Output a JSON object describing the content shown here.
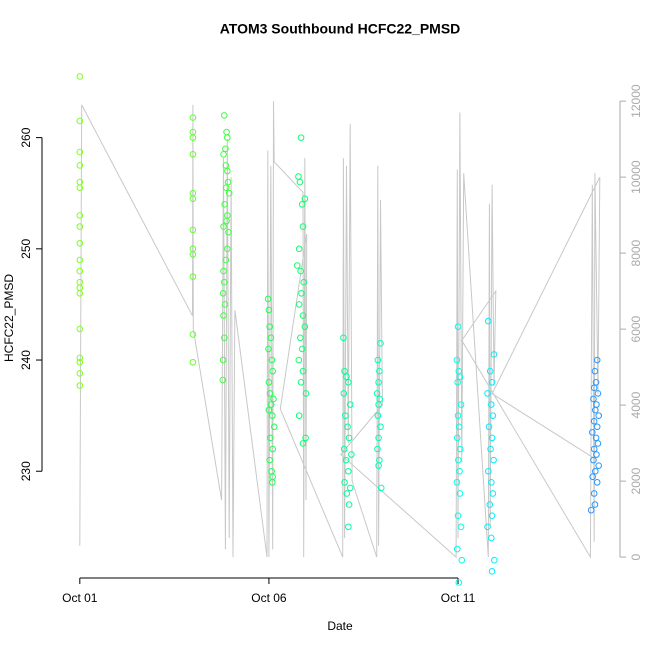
{
  "chart_data": {
    "type": "scatter",
    "title": "ATOM3 Southbound HCFC22_PMSD",
    "x_label": "Date",
    "y_label": "HCFC22_PMSD",
    "xlim": [
      0.0,
      15.23
    ],
    "xticks": [
      {
        "value": 1,
        "label": "Oct 01"
      },
      {
        "value": 6,
        "label": "Oct 06"
      },
      {
        "value": 11,
        "label": "Oct 11"
      }
    ],
    "ylim": [
      220.4,
      266.8
    ],
    "yticks": [
      230,
      240,
      250,
      260
    ],
    "y2lim": [
      -550,
      13030
    ],
    "y2ticks": [
      0,
      2000,
      4000,
      6000,
      8000,
      10000,
      12000
    ],
    "series": [
      {
        "color": "#80ff20",
        "x": [
          1,
          1,
          1,
          1,
          1,
          1,
          1,
          1,
          1,
          1,
          1,
          1,
          1,
          1,
          1,
          1,
          1,
          1,
          1
        ],
        "values": [
          265.5,
          261.5,
          258.7,
          257.5,
          256,
          255.5,
          253,
          252,
          250.5,
          249,
          248,
          247,
          246.5,
          246,
          242.8,
          240.2,
          239.8,
          238.8,
          237.7
        ]
      },
      {
        "color": "#60ff30",
        "x": [
          3.99,
          3.99,
          3.99,
          3.99,
          3.99,
          3.99,
          3.99,
          3.99,
          3.99,
          3.99,
          3.99,
          3.99
        ],
        "values": [
          261.8,
          260.5,
          260,
          258.5,
          255,
          254.5,
          251.7,
          250,
          249.5,
          247.5,
          242.3,
          239.8
        ]
      },
      {
        "color": "#40ff40",
        "x": [
          4.82,
          4.88,
          4.9,
          4.85,
          4.8,
          4.86,
          4.9,
          4.92,
          4.87,
          4.95,
          4.83,
          4.9,
          4.88,
          4.8,
          4.93,
          4.9,
          4.86,
          4.8,
          4.82,
          4.79,
          4.84,
          4.8,
          4.82,
          4.79,
          4.78
        ],
        "values": [
          262,
          260.5,
          260,
          259,
          258.5,
          257.5,
          257,
          256,
          255.5,
          255,
          254,
          253,
          252.5,
          252,
          251.5,
          250,
          249,
          248,
          247,
          246,
          245,
          244,
          242,
          240,
          238.2
        ]
      },
      {
        "color": "#20ff50",
        "x": [
          5.98,
          6.0,
          6.02,
          6.05,
          5.99,
          6.08,
          6.1,
          6.0,
          6.03,
          6.12,
          6.06,
          6.0,
          6.09,
          6.14,
          6.04,
          6.1,
          6.02,
          6.07,
          6.1,
          6.09
        ],
        "values": [
          245.5,
          244.5,
          243,
          242,
          241,
          240,
          239,
          238,
          237,
          236.5,
          236,
          235.5,
          235,
          234,
          233,
          232,
          231,
          230,
          229.5,
          229
        ]
      },
      {
        "color": "#10ff70",
        "x": [
          6.85,
          6.78,
          6.82,
          6.95,
          6.88,
          6.9,
          6.8,
          6.75,
          6.84,
          6.92,
          6.86,
          6.8,
          6.9,
          6.95,
          6.83,
          6.88,
          6.79,
          6.9,
          6.85,
          6.98,
          6.8,
          6.97,
          6.9
        ],
        "values": [
          260,
          256.5,
          256,
          254.5,
          254,
          252,
          250,
          248.5,
          248,
          247,
          246,
          245,
          244,
          243,
          242,
          241,
          240,
          239,
          238,
          237,
          235,
          233,
          232.5
        ]
      },
      {
        "color": "#00ff98",
        "x": [
          7.97,
          8.0,
          8.05,
          8.1,
          7.98,
          8.15,
          8.02,
          8.08,
          8.12,
          7.99,
          8.18,
          8.04,
          8.1,
          8.0,
          8.15,
          8.06,
          8.12,
          8.1
        ],
        "values": [
          242,
          239,
          238.5,
          238,
          237,
          236,
          235,
          234,
          233,
          232,
          231.5,
          231,
          230,
          229,
          228.5,
          228,
          227,
          225
        ]
      },
      {
        "color": "#00ffb8",
        "x": [
          8.95,
          8.88,
          8.92,
          8.9,
          8.86,
          8.93,
          8.9,
          8.88,
          8.95,
          8.9,
          8.87,
          8.92,
          8.9,
          8.97
        ],
        "values": [
          241.5,
          240,
          239,
          238,
          237,
          236.5,
          236,
          235,
          234,
          233,
          232,
          231,
          230.5,
          228.5
        ]
      },
      {
        "color": "#00ffe6",
        "x": [
          11.0,
          10.97,
          11.02,
          11.05,
          10.99,
          11.08,
          11.0,
          11.03,
          10.98,
          11.06,
          11.01,
          11.04,
          10.97,
          11.05,
          11.0,
          11.08,
          10.98,
          11.1,
          11.02
        ],
        "values": [
          243,
          240,
          239,
          238.5,
          238,
          236,
          235,
          234,
          233,
          232,
          231,
          230,
          229,
          228,
          226,
          225,
          223,
          222,
          220
        ]
      },
      {
        "color": "#00eeff",
        "x": [
          11.8,
          11.95,
          11.85,
          11.9,
          11.78,
          11.88,
          11.92,
          11.82,
          11.9,
          11.86,
          11.94,
          11.8,
          11.88,
          11.92,
          11.84,
          11.9,
          11.78,
          11.88,
          11.96,
          11.9
        ],
        "values": [
          243.5,
          240.5,
          239,
          238,
          237,
          236,
          235,
          234,
          233,
          232,
          231,
          230,
          229,
          228,
          227,
          226,
          225,
          224,
          222,
          221
        ]
      },
      {
        "color": "#2898ff",
        "x": [
          14.68,
          14.62,
          14.65,
          14.6,
          14.7,
          14.58,
          14.66,
          14.63,
          14.72,
          14.6,
          14.68,
          14.55,
          14.65,
          14.7,
          14.6,
          14.66,
          14.58,
          14.72,
          14.63,
          14.56,
          14.68,
          14.6,
          14.62,
          14.52
        ],
        "values": [
          240,
          239,
          238,
          237.5,
          237,
          236.5,
          236,
          235.5,
          235,
          234.5,
          234,
          233.5,
          233,
          232.5,
          232,
          231.5,
          231,
          230.5,
          230,
          229.5,
          229,
          228,
          227,
          226.5
        ]
      }
    ],
    "altitude": {
      "color": "#c8c8c8",
      "axis": "y2",
      "x": [
        1.0,
        1.05,
        3.98,
        3.99,
        4.0,
        4.75,
        4.8,
        4.85,
        4.9,
        4.95,
        5.0,
        5.05,
        5.1,
        5.95,
        5.97,
        6.0,
        6.05,
        6.1,
        6.12,
        6.14,
        6.9,
        6.92,
        6.95,
        6.98,
        7.0,
        6.3,
        7.95,
        7.97,
        8.0,
        8.05,
        8.1,
        8.15,
        8.2,
        8.85,
        8.88,
        8.9,
        8.95,
        9.0,
        7.9,
        10.95,
        10.98,
        11.0,
        11.05,
        11.1,
        11.15,
        11.8,
        11.83,
        11.85,
        11.9,
        11.95,
        12.0,
        11.1,
        14.5,
        14.55,
        14.6,
        14.62,
        14.7,
        14.75,
        11.9,
        14.6
      ],
      "values": [
        300,
        11900,
        6350,
        11900,
        6000,
        1500,
        10500,
        200,
        11000,
        500,
        10000,
        0,
        6500,
        0,
        10700,
        0,
        10300,
        200,
        12000,
        10400,
        9600,
        0,
        10500,
        1500,
        8500,
        3900,
        0,
        10500,
        500,
        10300,
        3000,
        11400,
        2000,
        0,
        10300,
        300,
        9400,
        4000,
        2700,
        0,
        10200,
        500,
        11700,
        2500,
        10100,
        0,
        9300,
        800,
        9800,
        4500,
        7000,
        5700,
        0,
        9800,
        400,
        10100,
        4300,
        10000,
        4300,
        2600
      ]
    }
  }
}
